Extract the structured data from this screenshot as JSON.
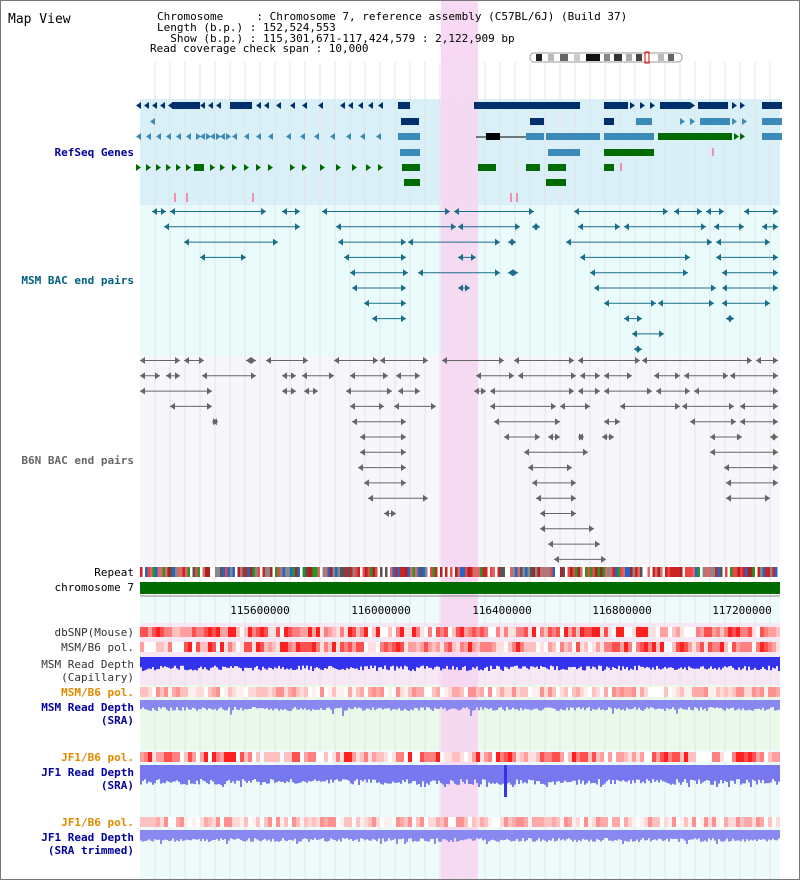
{
  "page_title": "Map View",
  "header": {
    "chromosome_line": "Chromosome     : Chromosome 7, reference assembly (C57BL/6J) (Build 37)",
    "length_line": "Length (b.p.) : 152,524,553",
    "show_line": "  Show (b.p.) : 115,301,671-117,424,579 : 2,122,909 bp",
    "coverage_line": "Read coverage check span : 10,000"
  },
  "tracks": {
    "refseq": "RefSeq Genes",
    "msm_bac": "MSM BAC end pairs",
    "b6n_bac": "B6N BAC end pairs",
    "repeat": "Repeat",
    "chromosome": "chromosome 7",
    "dbsnp": "dbSNP(Mouse)",
    "msm_b6_pol_1": "MSM/B6 pol.",
    "msm_read_depth_cap_1": "MSM Read Depth",
    "msm_read_depth_cap_2": "(Capillary)",
    "msm_b6_pol_2": "MSM/B6 pol.",
    "msm_read_depth_sra_1": "MSM Read Depth",
    "msm_read_depth_sra_2": "(SRA)",
    "jf1_b6_pol_1": "JF1/B6 pol.",
    "jf1_read_depth_sra_1": "JF1 Read Depth",
    "jf1_read_depth_sra_2": "(SRA)",
    "jf1_b6_pol_2": "JF1/B6 pol.",
    "jf1_read_depth_trim_1": "JF1 Read Depth",
    "jf1_read_depth_trim_2": "(SRA trimmed)"
  },
  "ruler": {
    "ticks": [
      "115600000",
      "116000000",
      "116400000",
      "116800000",
      "117200000"
    ]
  },
  "colors": {
    "refseq_bg": "#d9f0f8",
    "bac_bg": "#e9fbfb",
    "highlight": "#f7d5f2",
    "chrom_bar": "#006b00",
    "gene_dark": "#002f6c",
    "gene_mid": "#3c8ab8",
    "gene_green": "#006b00",
    "bac_msm": "#1a6e8a",
    "bac_b6n": "#666666",
    "depth_blue": "#5555ff",
    "depth_dark": "#0000cc",
    "label_blue": "#0000a0",
    "label_orange": "#e08a00",
    "label_teal": "#006080"
  }
}
